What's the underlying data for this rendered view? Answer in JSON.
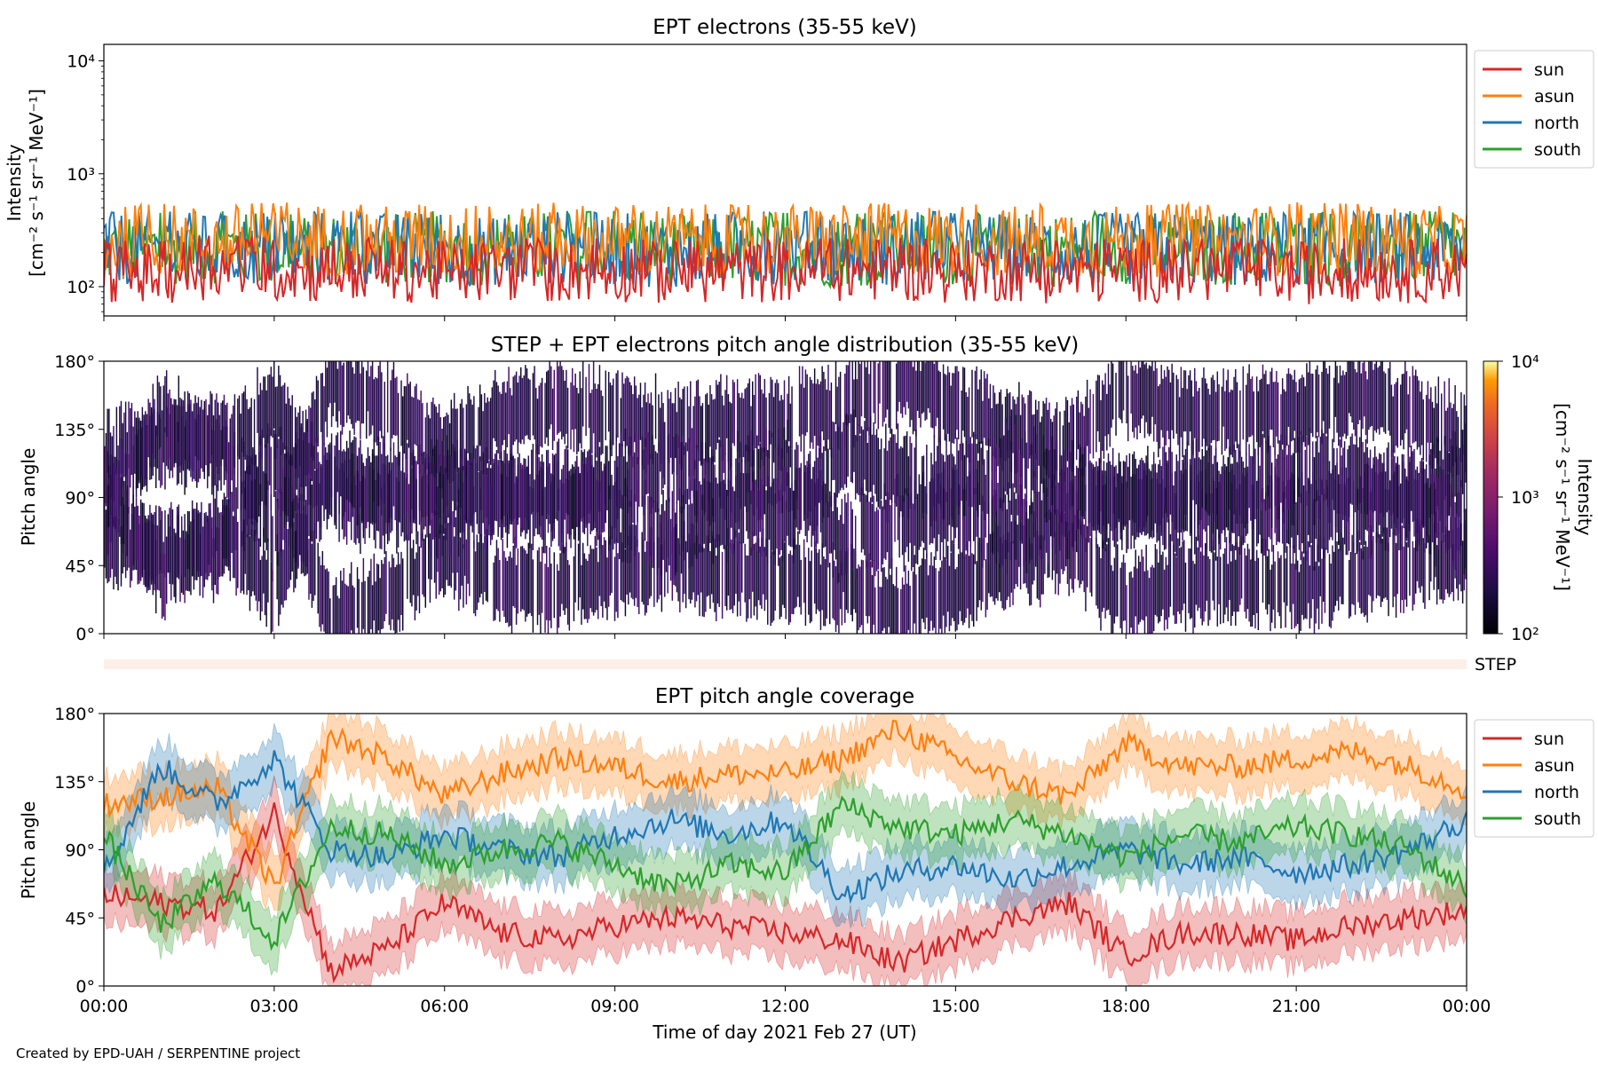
{
  "colors": {
    "sun": "#d62728",
    "asun": "#ff7f0e",
    "north": "#1f77b4",
    "south": "#2ca02c",
    "step_bar": "#fdeee8"
  },
  "footer": "Created by EPD-UAH / SERPENTINE project",
  "xaxis": {
    "label": "Time of day 2021 Feb 27 (UT)",
    "ticks": [
      "00:00",
      "03:00",
      "06:00",
      "09:00",
      "12:00",
      "15:00",
      "18:00",
      "21:00",
      "00:00"
    ],
    "range_hours": [
      0,
      24
    ]
  },
  "panel1": {
    "title": "EPT electrons (35-55 keV)",
    "ylabel_line1": "Intensity",
    "ylabel_line2": "[cm⁻² s⁻¹ sr⁻¹ MeV⁻¹]",
    "ytick_labels": [
      "10²",
      "10³",
      "10⁴"
    ]
  },
  "panel2": {
    "title": "STEP + EPT electrons pitch angle distribution (35-55 keV)",
    "ylabel": "Pitch angle",
    "ytick_labels": [
      "0°",
      "45°",
      "90°",
      "135°",
      "180°"
    ],
    "colorbar_label_line1": "Intensity",
    "colorbar_label_line2": "[cm⁻² s⁻¹ sr⁻¹ MeV⁻¹]",
    "colorbar_tick_labels": [
      "10²",
      "10³",
      "10⁴"
    ]
  },
  "step_label": "STEP",
  "panel3": {
    "title": "EPT pitch angle coverage",
    "ylabel": "Pitch angle",
    "ytick_labels": [
      "0°",
      "45°",
      "90°",
      "135°",
      "180°"
    ]
  },
  "legend": {
    "sun": "sun",
    "asun": "asun",
    "north": "north",
    "south": "south"
  },
  "chart_data": [
    {
      "type": "line",
      "title": "EPT electrons (35-55 keV)",
      "xlabel": "",
      "ylabel": "Intensity [cm⁻² s⁻¹ sr⁻¹ MeV⁻¹]",
      "yscale": "log",
      "ylim": [
        55,
        14000
      ],
      "xlim_hours": [
        0,
        24
      ],
      "legend_position": "outside-top-right",
      "x_hours": [
        0,
        1,
        2,
        3,
        4,
        5,
        6,
        7,
        8,
        9,
        10,
        11,
        12,
        13,
        14,
        15,
        16,
        17,
        18,
        19,
        20,
        21,
        22,
        23,
        24
      ],
      "series": [
        {
          "name": "sun",
          "values": [
            150,
            140,
            160,
            150,
            145,
            150,
            140,
            150,
            145,
            150,
            140,
            150,
            145,
            150,
            150,
            145,
            150,
            140,
            150,
            145,
            150,
            140,
            150,
            145,
            150
          ]
        },
        {
          "name": "asun",
          "values": [
            280,
            300,
            290,
            310,
            300,
            290,
            300,
            280,
            310,
            290,
            300,
            290,
            300,
            290,
            310,
            300,
            290,
            300,
            290,
            300,
            290,
            310,
            300,
            290,
            280
          ]
        },
        {
          "name": "north",
          "values": [
            250,
            260,
            240,
            250,
            260,
            250,
            240,
            250,
            260,
            250,
            240,
            250,
            260,
            250,
            250,
            260,
            250,
            240,
            250,
            260,
            240,
            250,
            260,
            250,
            250
          ]
        },
        {
          "name": "south",
          "values": [
            240,
            250,
            260,
            240,
            250,
            250,
            260,
            240,
            250,
            260,
            240,
            250,
            250,
            240,
            260,
            250,
            240,
            250,
            260,
            240,
            250,
            250,
            240,
            260,
            250
          ]
        }
      ]
    },
    {
      "type": "heatmap",
      "title": "STEP + EPT electrons pitch angle distribution (35-55 keV)",
      "ylabel": "Pitch angle",
      "ylim_deg": [
        0,
        180
      ],
      "xlim_hours": [
        0,
        24
      ],
      "colorbar_scale": "log",
      "colorbar_range": [
        100,
        10000
      ],
      "colormap": "inferno",
      "note_values": "mostly near 10² (dark purple); blank where coverage gaps"
    },
    {
      "type": "area",
      "title": "EPT pitch angle coverage",
      "ylabel": "Pitch angle",
      "ylim_deg": [
        0,
        180
      ],
      "xlim_hours": [
        0,
        24
      ],
      "legend_position": "outside-top-right",
      "x_hours": [
        0,
        1,
        2,
        3,
        4,
        5,
        6,
        7,
        8,
        9,
        10,
        11,
        12,
        13,
        14,
        15,
        16,
        17,
        18,
        19,
        20,
        21,
        22,
        23,
        24
      ],
      "band_halfwidth_deg": 18,
      "series": [
        {
          "name": "sun",
          "values": [
            60,
            55,
            50,
            115,
            10,
            25,
            55,
            35,
            30,
            40,
            45,
            40,
            35,
            30,
            15,
            30,
            45,
            55,
            20,
            35,
            35,
            30,
            40,
            45,
            50
          ]
        },
        {
          "name": "asun",
          "values": [
            120,
            125,
            130,
            65,
            165,
            150,
            125,
            140,
            150,
            145,
            135,
            140,
            140,
            150,
            170,
            150,
            135,
            125,
            160,
            145,
            145,
            150,
            155,
            145,
            130
          ]
        },
        {
          "name": "north",
          "values": [
            75,
            145,
            120,
            150,
            90,
            85,
            100,
            90,
            85,
            100,
            110,
            100,
            110,
            60,
            75,
            80,
            70,
            80,
            90,
            80,
            85,
            75,
            80,
            90,
            110
          ]
        },
        {
          "name": "south",
          "values": [
            100,
            40,
            70,
            30,
            105,
            100,
            80,
            90,
            95,
            80,
            65,
            80,
            75,
            120,
            105,
            100,
            110,
            100,
            85,
            100,
            95,
            105,
            100,
            90,
            65
          ]
        }
      ]
    }
  ]
}
